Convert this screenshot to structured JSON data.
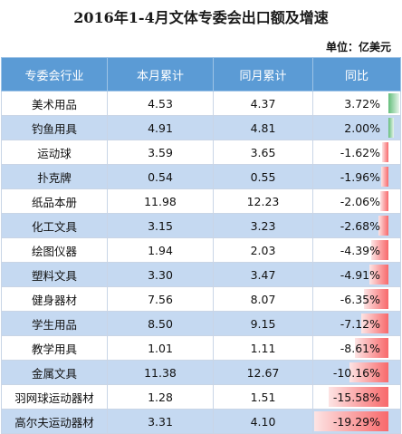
{
  "chart_data": {
    "type": "table",
    "title": "2016年1-4月文体专委会出口额及增速",
    "unit_label": "单位：亿美元",
    "columns": [
      "专委会行业",
      "本月累计",
      "同月累计",
      "同比"
    ],
    "rows": [
      {
        "industry": "美术用品",
        "current": "4.53",
        "previous": "4.37",
        "yoy": "3.72%",
        "yoy_value": 3.72
      },
      {
        "industry": "钓鱼用具",
        "current": "4.91",
        "previous": "4.81",
        "yoy": "2.00%",
        "yoy_value": 2.0
      },
      {
        "industry": "运动球",
        "current": "3.59",
        "previous": "3.65",
        "yoy": "-1.62%",
        "yoy_value": -1.62
      },
      {
        "industry": "扑克牌",
        "current": "0.54",
        "previous": "0.55",
        "yoy": "-1.96%",
        "yoy_value": -1.96
      },
      {
        "industry": "纸品本册",
        "current": "11.98",
        "previous": "12.23",
        "yoy": "-2.06%",
        "yoy_value": -2.06
      },
      {
        "industry": "化工文具",
        "current": "3.15",
        "previous": "3.23",
        "yoy": "-2.68%",
        "yoy_value": -2.68
      },
      {
        "industry": "绘图仪器",
        "current": "1.94",
        "previous": "2.03",
        "yoy": "-4.39%",
        "yoy_value": -4.39
      },
      {
        "industry": "塑料文具",
        "current": "3.30",
        "previous": "3.47",
        "yoy": "-4.91%",
        "yoy_value": -4.91
      },
      {
        "industry": "健身器材",
        "current": "7.56",
        "previous": "8.07",
        "yoy": "-6.35%",
        "yoy_value": -6.35
      },
      {
        "industry": "学生用品",
        "current": "8.50",
        "previous": "9.15",
        "yoy": "-7.12%",
        "yoy_value": -7.12
      },
      {
        "industry": "教学用具",
        "current": "1.01",
        "previous": "1.11",
        "yoy": "-8.61%",
        "yoy_value": -8.61
      },
      {
        "industry": "金属文具",
        "current": "11.38",
        "previous": "12.67",
        "yoy": "-10.16%",
        "yoy_value": -10.16
      },
      {
        "industry": "羽网球运动器材",
        "current": "1.28",
        "previous": "1.51",
        "yoy": "-15.58%",
        "yoy_value": -15.58
      },
      {
        "industry": "高尔夫运动器材",
        "current": "3.31",
        "previous": "4.10",
        "yoy": "-19.29%",
        "yoy_value": -19.29
      }
    ],
    "colors": {
      "header": "#5b9bd5",
      "band": "#c5d9f1",
      "positive_bar": "#63be7b",
      "negative_bar": "#f8696b"
    }
  }
}
